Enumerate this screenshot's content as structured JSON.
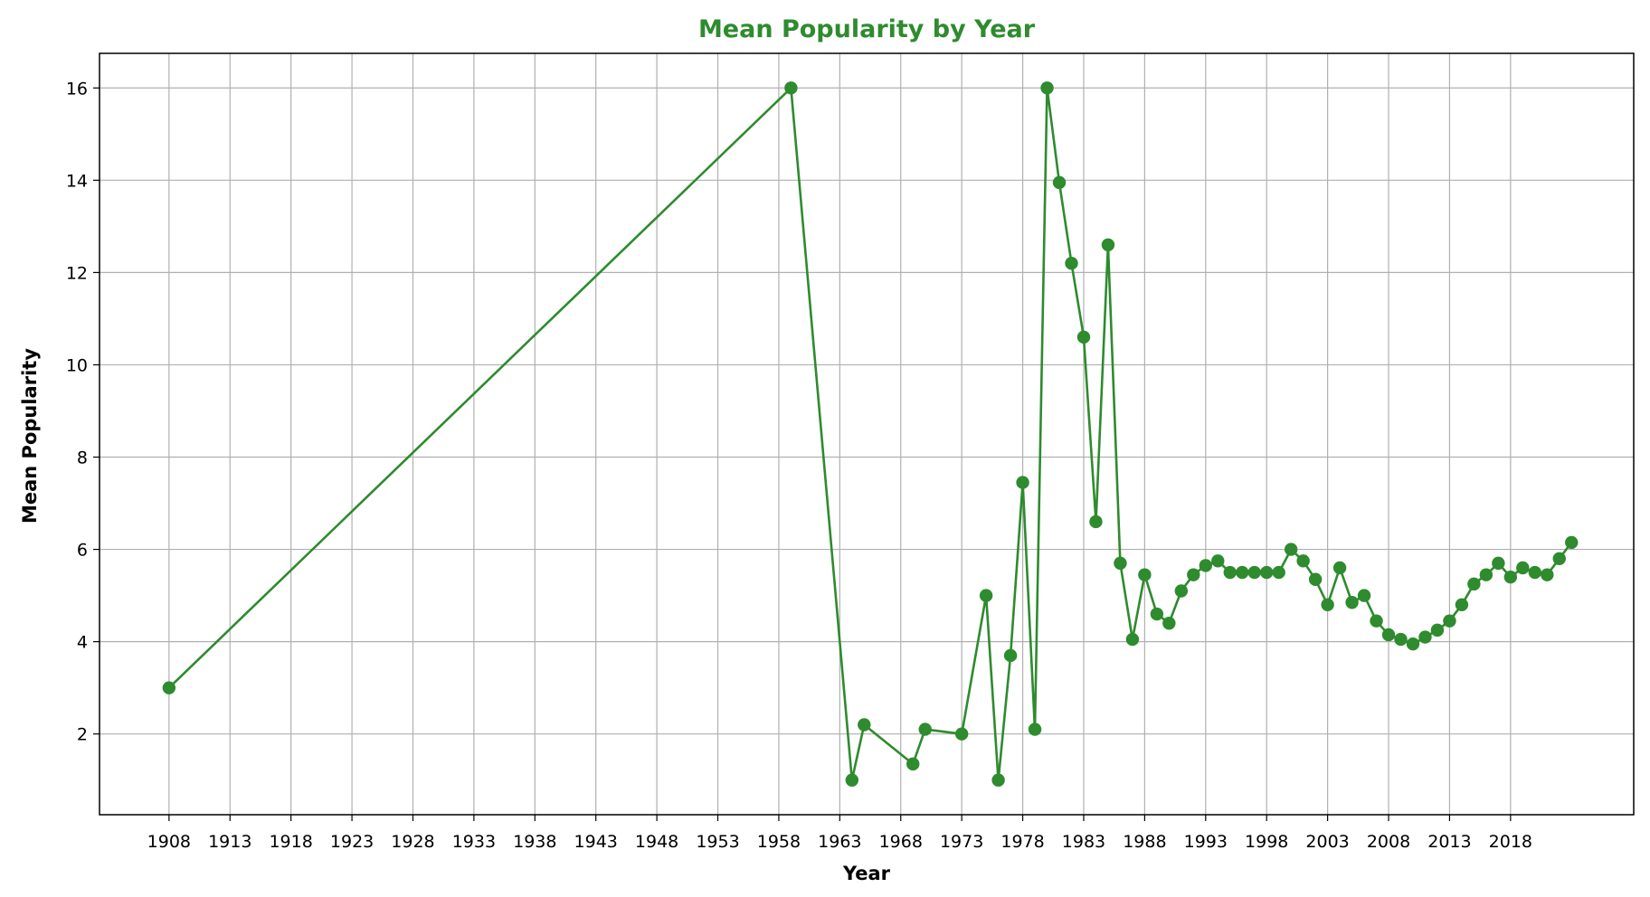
{
  "colors": {
    "series": "#2e8b2e",
    "title": "#2e8b2e",
    "grid": "#b0b0b0",
    "axis": "#000000"
  },
  "chart_data": {
    "type": "line",
    "title": "Mean Popularity by Year",
    "xlabel": "Year",
    "ylabel": "Mean Popularity",
    "xlim": [
      1902.3,
      2028.1
    ],
    "ylim": [
      0.25,
      16.75
    ],
    "xticks": [
      1908,
      1913,
      1918,
      1923,
      1928,
      1933,
      1938,
      1943,
      1948,
      1953,
      1958,
      1963,
      1968,
      1973,
      1978,
      1983,
      1988,
      1993,
      1998,
      2003,
      2008,
      2013,
      2018
    ],
    "yticks": [
      2,
      4,
      6,
      8,
      10,
      12,
      14,
      16
    ],
    "grid": true,
    "series": [
      {
        "marker": "circle",
        "x": [
          1908,
          1959,
          1964,
          1965,
          1969,
          1970,
          1973,
          1975,
          1976,
          1977,
          1978,
          1979,
          1980,
          1981,
          1982,
          1983,
          1984,
          1985,
          1986,
          1987,
          1988,
          1989,
          1990,
          1991,
          1992,
          1993,
          1994,
          1995,
          1996,
          1997,
          1998,
          1999,
          2000,
          2001,
          2002,
          2003,
          2004,
          2005,
          2006,
          2007,
          2008,
          2009,
          2010,
          2011,
          2012,
          2013,
          2014,
          2015,
          2016,
          2017,
          2018,
          2019,
          2020,
          2021,
          2022,
          2023
        ],
        "y": [
          3.0,
          16.0,
          1.0,
          2.2,
          1.35,
          2.1,
          2.0,
          5.0,
          1.0,
          3.7,
          7.45,
          2.1,
          16.0,
          13.95,
          12.2,
          10.6,
          6.6,
          12.6,
          5.7,
          4.05,
          5.45,
          4.6,
          4.4,
          5.1,
          5.45,
          5.65,
          5.75,
          5.5,
          5.5,
          5.5,
          5.5,
          5.5,
          6.0,
          5.75,
          5.35,
          4.8,
          5.6,
          4.85,
          5.0,
          4.45,
          4.15,
          4.05,
          3.95,
          4.1,
          4.25,
          4.45,
          4.8,
          5.25,
          5.45,
          5.7,
          5.4,
          5.6,
          5.5,
          5.45,
          5.8,
          6.15
        ]
      }
    ]
  }
}
